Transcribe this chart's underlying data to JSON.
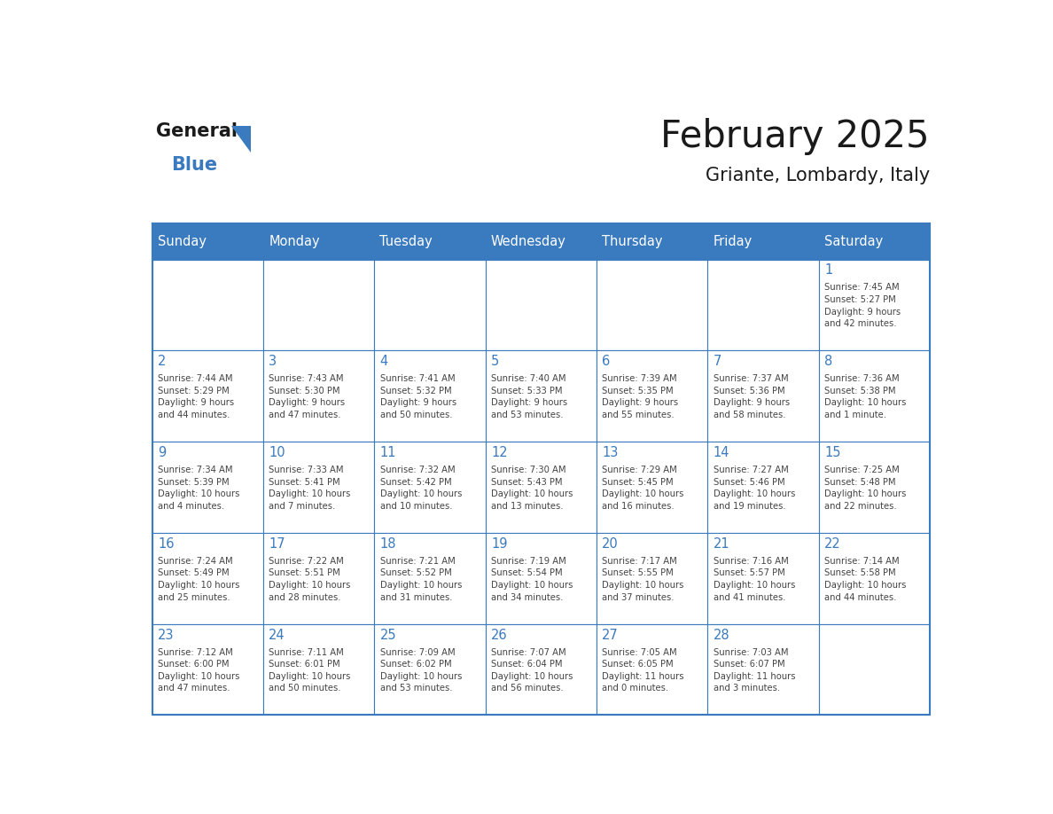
{
  "title": "February 2025",
  "subtitle": "Griante, Lombardy, Italy",
  "header_bg": "#3a7abf",
  "header_text": "#ffffff",
  "cell_bg": "#ffffff",
  "border_color": "#3a7abf",
  "day_number_color": "#3a7abf",
  "text_color": "#444444",
  "days_of_week": [
    "Sunday",
    "Monday",
    "Tuesday",
    "Wednesday",
    "Thursday",
    "Friday",
    "Saturday"
  ],
  "weeks": [
    [
      {
        "day": null,
        "info": null
      },
      {
        "day": null,
        "info": null
      },
      {
        "day": null,
        "info": null
      },
      {
        "day": null,
        "info": null
      },
      {
        "day": null,
        "info": null
      },
      {
        "day": null,
        "info": null
      },
      {
        "day": 1,
        "info": "Sunrise: 7:45 AM\nSunset: 5:27 PM\nDaylight: 9 hours\nand 42 minutes."
      }
    ],
    [
      {
        "day": 2,
        "info": "Sunrise: 7:44 AM\nSunset: 5:29 PM\nDaylight: 9 hours\nand 44 minutes."
      },
      {
        "day": 3,
        "info": "Sunrise: 7:43 AM\nSunset: 5:30 PM\nDaylight: 9 hours\nand 47 minutes."
      },
      {
        "day": 4,
        "info": "Sunrise: 7:41 AM\nSunset: 5:32 PM\nDaylight: 9 hours\nand 50 minutes."
      },
      {
        "day": 5,
        "info": "Sunrise: 7:40 AM\nSunset: 5:33 PM\nDaylight: 9 hours\nand 53 minutes."
      },
      {
        "day": 6,
        "info": "Sunrise: 7:39 AM\nSunset: 5:35 PM\nDaylight: 9 hours\nand 55 minutes."
      },
      {
        "day": 7,
        "info": "Sunrise: 7:37 AM\nSunset: 5:36 PM\nDaylight: 9 hours\nand 58 minutes."
      },
      {
        "day": 8,
        "info": "Sunrise: 7:36 AM\nSunset: 5:38 PM\nDaylight: 10 hours\nand 1 minute."
      }
    ],
    [
      {
        "day": 9,
        "info": "Sunrise: 7:34 AM\nSunset: 5:39 PM\nDaylight: 10 hours\nand 4 minutes."
      },
      {
        "day": 10,
        "info": "Sunrise: 7:33 AM\nSunset: 5:41 PM\nDaylight: 10 hours\nand 7 minutes."
      },
      {
        "day": 11,
        "info": "Sunrise: 7:32 AM\nSunset: 5:42 PM\nDaylight: 10 hours\nand 10 minutes."
      },
      {
        "day": 12,
        "info": "Sunrise: 7:30 AM\nSunset: 5:43 PM\nDaylight: 10 hours\nand 13 minutes."
      },
      {
        "day": 13,
        "info": "Sunrise: 7:29 AM\nSunset: 5:45 PM\nDaylight: 10 hours\nand 16 minutes."
      },
      {
        "day": 14,
        "info": "Sunrise: 7:27 AM\nSunset: 5:46 PM\nDaylight: 10 hours\nand 19 minutes."
      },
      {
        "day": 15,
        "info": "Sunrise: 7:25 AM\nSunset: 5:48 PM\nDaylight: 10 hours\nand 22 minutes."
      }
    ],
    [
      {
        "day": 16,
        "info": "Sunrise: 7:24 AM\nSunset: 5:49 PM\nDaylight: 10 hours\nand 25 minutes."
      },
      {
        "day": 17,
        "info": "Sunrise: 7:22 AM\nSunset: 5:51 PM\nDaylight: 10 hours\nand 28 minutes."
      },
      {
        "day": 18,
        "info": "Sunrise: 7:21 AM\nSunset: 5:52 PM\nDaylight: 10 hours\nand 31 minutes."
      },
      {
        "day": 19,
        "info": "Sunrise: 7:19 AM\nSunset: 5:54 PM\nDaylight: 10 hours\nand 34 minutes."
      },
      {
        "day": 20,
        "info": "Sunrise: 7:17 AM\nSunset: 5:55 PM\nDaylight: 10 hours\nand 37 minutes."
      },
      {
        "day": 21,
        "info": "Sunrise: 7:16 AM\nSunset: 5:57 PM\nDaylight: 10 hours\nand 41 minutes."
      },
      {
        "day": 22,
        "info": "Sunrise: 7:14 AM\nSunset: 5:58 PM\nDaylight: 10 hours\nand 44 minutes."
      }
    ],
    [
      {
        "day": 23,
        "info": "Sunrise: 7:12 AM\nSunset: 6:00 PM\nDaylight: 10 hours\nand 47 minutes."
      },
      {
        "day": 24,
        "info": "Sunrise: 7:11 AM\nSunset: 6:01 PM\nDaylight: 10 hours\nand 50 minutes."
      },
      {
        "day": 25,
        "info": "Sunrise: 7:09 AM\nSunset: 6:02 PM\nDaylight: 10 hours\nand 53 minutes."
      },
      {
        "day": 26,
        "info": "Sunrise: 7:07 AM\nSunset: 6:04 PM\nDaylight: 10 hours\nand 56 minutes."
      },
      {
        "day": 27,
        "info": "Sunrise: 7:05 AM\nSunset: 6:05 PM\nDaylight: 11 hours\nand 0 minutes."
      },
      {
        "day": 28,
        "info": "Sunrise: 7:03 AM\nSunset: 6:07 PM\nDaylight: 11 hours\nand 3 minutes."
      },
      {
        "day": null,
        "info": null
      }
    ]
  ]
}
